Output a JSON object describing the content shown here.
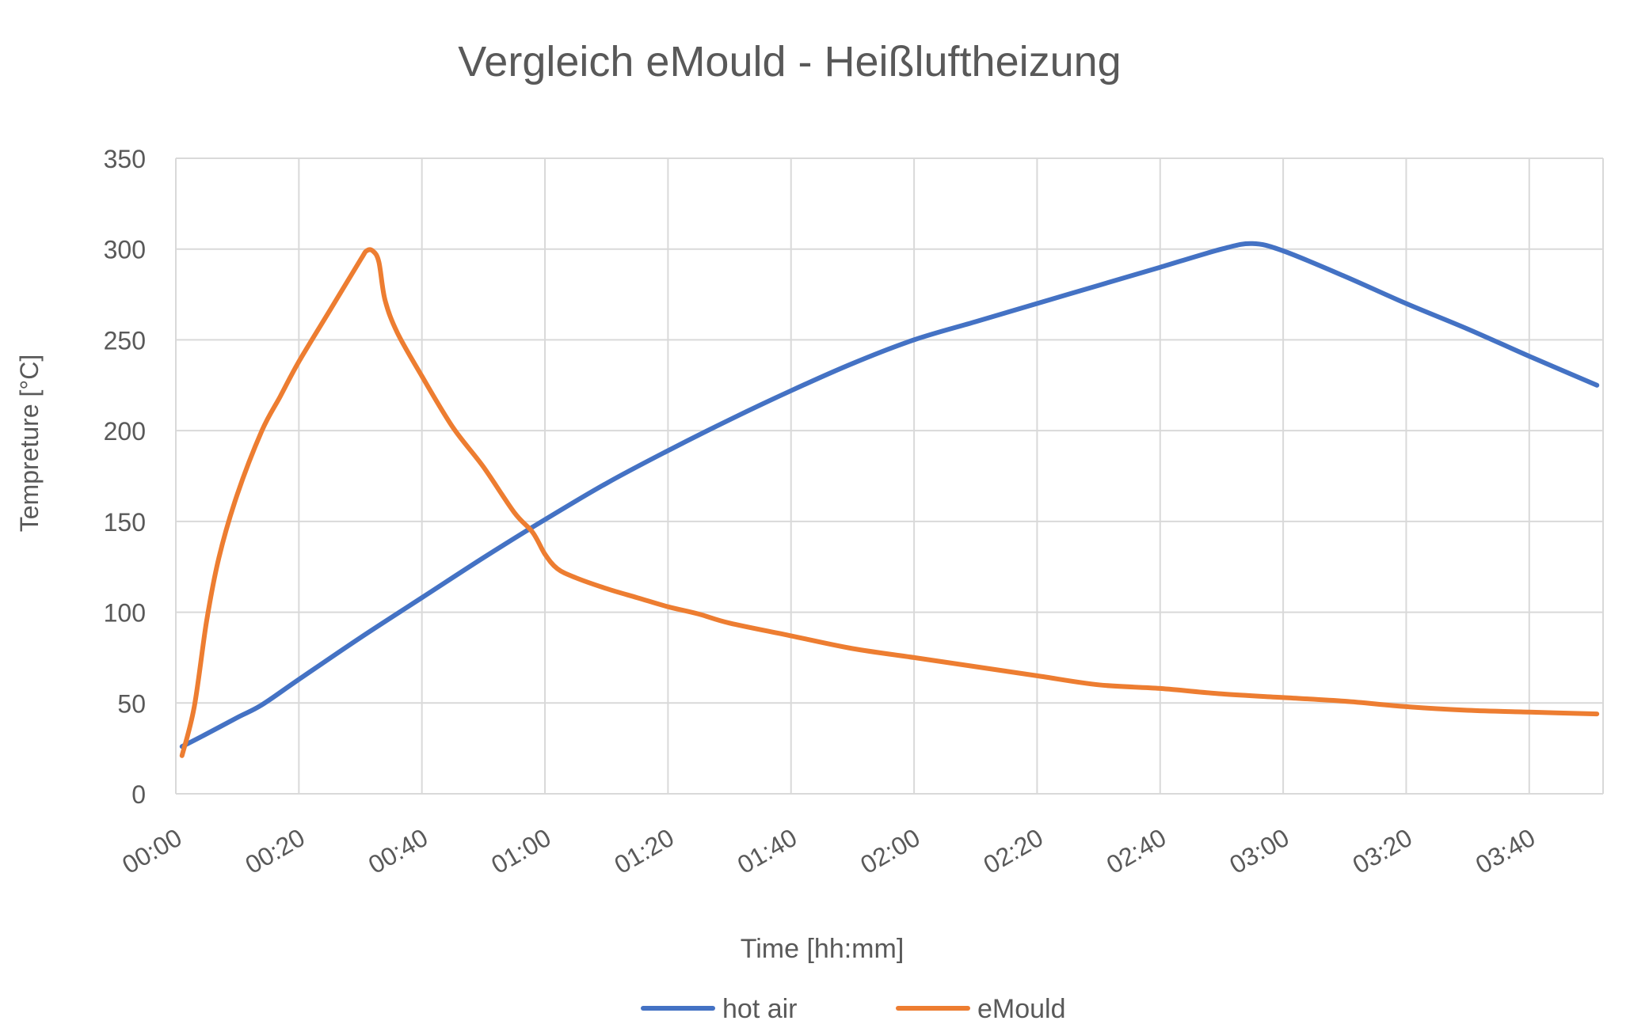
{
  "chart_data": {
    "type": "line",
    "title": "Vergleich eMould - Heißluftheizung",
    "xlabel": "Time [hh:mm]",
    "ylabel": "Tempreture  [°C]",
    "ylim": [
      0,
      350
    ],
    "yticks": [
      0,
      50,
      100,
      150,
      200,
      250,
      300,
      350
    ],
    "xlim": [
      "00:00",
      "03:52"
    ],
    "xticks": [
      "00:00",
      "00:20",
      "00:40",
      "01:00",
      "01:20",
      "01:40",
      "02:00",
      "02:20",
      "02:40",
      "03:00",
      "03:20",
      "03:40"
    ],
    "grid": true,
    "legend_position": "bottom",
    "series": [
      {
        "name": "hot air",
        "color": "#4472C4",
        "points": [
          [
            "00:01",
            26
          ],
          [
            "00:05",
            33
          ],
          [
            "00:10",
            42
          ],
          [
            "00:14",
            49
          ],
          [
            "00:20",
            63
          ],
          [
            "00:30",
            86
          ],
          [
            "00:40",
            108
          ],
          [
            "00:50",
            130
          ],
          [
            "01:00",
            151
          ],
          [
            "01:10",
            171
          ],
          [
            "01:20",
            189
          ],
          [
            "01:30",
            206
          ],
          [
            "01:40",
            222
          ],
          [
            "01:50",
            237
          ],
          [
            "02:00",
            250
          ],
          [
            "02:10",
            260
          ],
          [
            "02:20",
            270
          ],
          [
            "02:30",
            280
          ],
          [
            "02:40",
            290
          ],
          [
            "02:50",
            300
          ],
          [
            "02:55",
            303
          ],
          [
            "03:00",
            299
          ],
          [
            "03:10",
            285
          ],
          [
            "03:20",
            270
          ],
          [
            "03:30",
            256
          ],
          [
            "03:40",
            241
          ],
          [
            "03:51",
            225
          ]
        ]
      },
      {
        "name": "eMould",
        "color": "#ED7D31",
        "points": [
          [
            "00:01",
            21
          ],
          [
            "00:03",
            48
          ],
          [
            "00:05",
            95
          ],
          [
            "00:07",
            130
          ],
          [
            "00:10",
            165
          ],
          [
            "00:14",
            200
          ],
          [
            "00:17",
            219
          ],
          [
            "00:20",
            238
          ],
          [
            "00:25",
            266
          ],
          [
            "00:30",
            294
          ],
          [
            "00:31",
            299
          ],
          [
            "00:32",
            299
          ],
          [
            "00:33",
            293
          ],
          [
            "00:34",
            272
          ],
          [
            "00:36",
            254
          ],
          [
            "00:40",
            230
          ],
          [
            "00:45",
            202
          ],
          [
            "00:50",
            180
          ],
          [
            "00:55",
            155
          ],
          [
            "00:58",
            144
          ],
          [
            "01:00",
            132
          ],
          [
            "01:02",
            124
          ],
          [
            "01:05",
            119
          ],
          [
            "01:10",
            113
          ],
          [
            "01:15",
            108
          ],
          [
            "01:20",
            103
          ],
          [
            "01:25",
            99
          ],
          [
            "01:30",
            94
          ],
          [
            "01:40",
            87
          ],
          [
            "01:50",
            80
          ],
          [
            "02:00",
            75
          ],
          [
            "02:10",
            70
          ],
          [
            "02:20",
            65
          ],
          [
            "02:30",
            60
          ],
          [
            "02:40",
            58
          ],
          [
            "02:50",
            55
          ],
          [
            "03:00",
            53
          ],
          [
            "03:10",
            51
          ],
          [
            "03:20",
            48
          ],
          [
            "03:30",
            46
          ],
          [
            "03:40",
            45
          ],
          [
            "03:51",
            44
          ]
        ]
      }
    ]
  }
}
